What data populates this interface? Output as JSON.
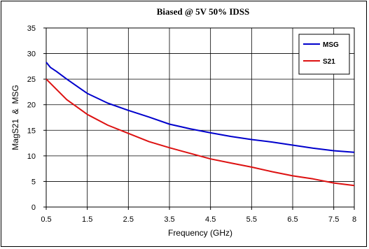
{
  "chart_data": {
    "type": "line",
    "title": "Biased @ 5V  50% IDSS",
    "xlabel": "Frequency (GHz)",
    "ylabel": "MagS21  &  MSG",
    "xlim": [
      0.5,
      8
    ],
    "ylim": [
      0,
      35
    ],
    "x_ticks": [
      "0.5",
      "1.5",
      "2.5",
      "3.5",
      "4.5",
      "5.5",
      "6.5",
      "7.5",
      "8"
    ],
    "x_tick_values": [
      0.5,
      1.5,
      2.5,
      3.5,
      4.5,
      5.5,
      6.5,
      7.5,
      8
    ],
    "y_ticks": [
      "0",
      "5",
      "10",
      "15",
      "20",
      "25",
      "30",
      "35"
    ],
    "y_tick_values": [
      0,
      5,
      10,
      15,
      20,
      25,
      30,
      35
    ],
    "grid": true,
    "legend_position": "top-right",
    "series": [
      {
        "name": "MSG",
        "color": "#0000cc",
        "x": [
          0.5,
          0.6,
          0.75,
          1.0,
          1.5,
          2.0,
          2.5,
          3.0,
          3.5,
          4.0,
          4.5,
          5.0,
          5.5,
          6.0,
          6.5,
          7.0,
          7.5,
          8.0
        ],
        "y": [
          28.3,
          27.3,
          26.5,
          25.0,
          22.2,
          20.3,
          18.9,
          17.6,
          16.2,
          15.3,
          14.5,
          13.8,
          13.2,
          12.7,
          12.1,
          11.5,
          11.0,
          10.7
        ]
      },
      {
        "name": "S21",
        "color": "#dd1111",
        "x": [
          0.5,
          0.75,
          1.0,
          1.5,
          2.0,
          2.5,
          3.0,
          3.5,
          4.0,
          4.5,
          5.0,
          5.5,
          6.0,
          6.5,
          7.0,
          7.5,
          8.0
        ],
        "y": [
          25.0,
          23.0,
          21.0,
          18.1,
          16.0,
          14.4,
          12.8,
          11.6,
          10.5,
          9.4,
          8.6,
          7.8,
          6.9,
          6.1,
          5.5,
          4.7,
          4.2
        ]
      }
    ]
  }
}
